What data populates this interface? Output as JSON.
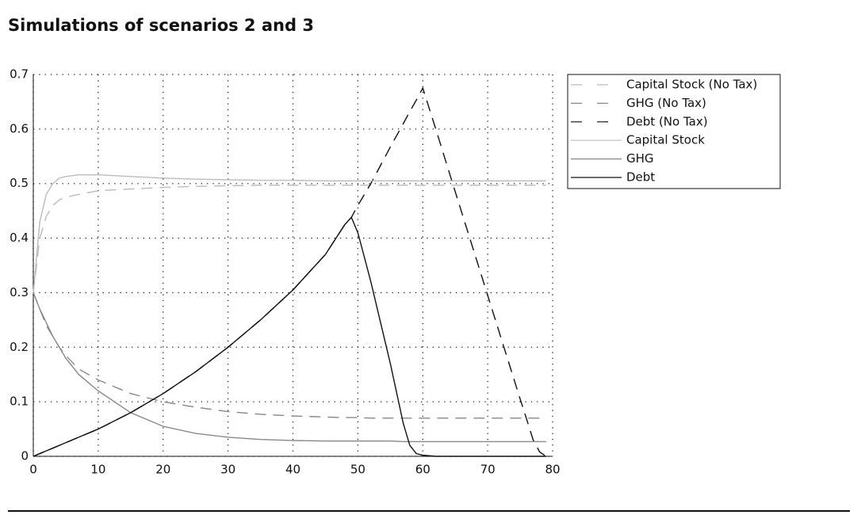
{
  "chart_data": {
    "type": "line",
    "title": "Simulations of scenarios 2 and 3",
    "x": [
      0,
      1,
      2,
      3,
      4,
      5,
      7,
      10,
      15,
      20,
      25,
      30,
      35,
      40,
      45,
      48,
      49,
      50,
      52,
      55,
      57,
      58,
      59,
      60,
      62,
      65,
      70,
      75,
      76,
      77,
      78,
      79
    ],
    "xlim": [
      0,
      80
    ],
    "xticks": [
      0,
      10,
      20,
      30,
      40,
      50,
      60,
      70,
      80
    ],
    "ylim": [
      0,
      0.7
    ],
    "yticks": [
      0,
      0.1,
      0.2,
      0.3,
      0.4,
      0.5,
      0.6,
      0.7
    ],
    "grid": true,
    "legend": "outside-right",
    "series": [
      {
        "name": "Capital Stock (No Tax)",
        "color": "#bbbbbb",
        "dashed": true,
        "values": [
          0.3,
          0.4,
          0.44,
          0.46,
          0.47,
          0.475,
          0.48,
          0.487,
          0.49,
          0.493,
          0.495,
          0.496,
          0.497,
          0.497,
          0.497,
          0.497,
          0.497,
          0.497,
          0.497,
          0.497,
          0.497,
          0.497,
          0.497,
          0.497,
          0.497,
          0.497,
          0.497,
          0.497,
          0.497,
          0.497,
          0.497,
          0.497
        ]
      },
      {
        "name": "GHG (No Tax)",
        "color": "#888888",
        "dashed": true,
        "values": [
          0.3,
          0.27,
          0.24,
          0.22,
          0.2,
          0.185,
          0.16,
          0.14,
          0.115,
          0.1,
          0.09,
          0.082,
          0.077,
          0.074,
          0.072,
          0.071,
          0.071,
          0.071,
          0.07,
          0.07,
          0.07,
          0.07,
          0.07,
          0.07,
          0.07,
          0.07,
          0.07,
          0.07,
          0.07,
          0.07,
          0.07,
          0.07
        ]
      },
      {
        "name": "Debt (No Tax)",
        "color": "#111111",
        "dashed": true,
        "values": [
          0,
          0.005,
          0.01,
          0.015,
          0.02,
          0.025,
          0.035,
          0.05,
          0.08,
          0.115,
          0.155,
          0.2,
          0.25,
          0.305,
          0.37,
          0.425,
          0.438,
          0.46,
          0.5,
          0.567,
          0.61,
          0.632,
          0.653,
          0.675,
          0.6,
          0.485,
          0.295,
          0.105,
          0.068,
          0.03,
          0.008,
          0
        ]
      },
      {
        "name": "Capital Stock",
        "color": "#bbbbbb",
        "dashed": false,
        "values": [
          0.3,
          0.43,
          0.48,
          0.5,
          0.51,
          0.513,
          0.516,
          0.516,
          0.513,
          0.51,
          0.508,
          0.507,
          0.506,
          0.506,
          0.505,
          0.505,
          0.505,
          0.505,
          0.505,
          0.505,
          0.505,
          0.505,
          0.505,
          0.505,
          0.505,
          0.505,
          0.505,
          0.505,
          0.505,
          0.505,
          0.505,
          0.505
        ]
      },
      {
        "name": "GHG",
        "color": "#888888",
        "dashed": false,
        "values": [
          0.3,
          0.27,
          0.245,
          0.22,
          0.2,
          0.18,
          0.15,
          0.12,
          0.08,
          0.055,
          0.042,
          0.035,
          0.031,
          0.029,
          0.028,
          0.028,
          0.028,
          0.028,
          0.028,
          0.028,
          0.027,
          0.027,
          0.027,
          0.027,
          0.027,
          0.027,
          0.027,
          0.027,
          0.027,
          0.027,
          0.027,
          0.027
        ]
      },
      {
        "name": "Debt",
        "color": "#111111",
        "dashed": false,
        "values": [
          0,
          0.005,
          0.01,
          0.015,
          0.02,
          0.025,
          0.035,
          0.05,
          0.08,
          0.115,
          0.155,
          0.2,
          0.25,
          0.305,
          0.37,
          0.425,
          0.438,
          0.41,
          0.32,
          0.17,
          0.06,
          0.02,
          0.005,
          0.002,
          0,
          0,
          0,
          0,
          0,
          0,
          0,
          0
        ]
      }
    ]
  }
}
